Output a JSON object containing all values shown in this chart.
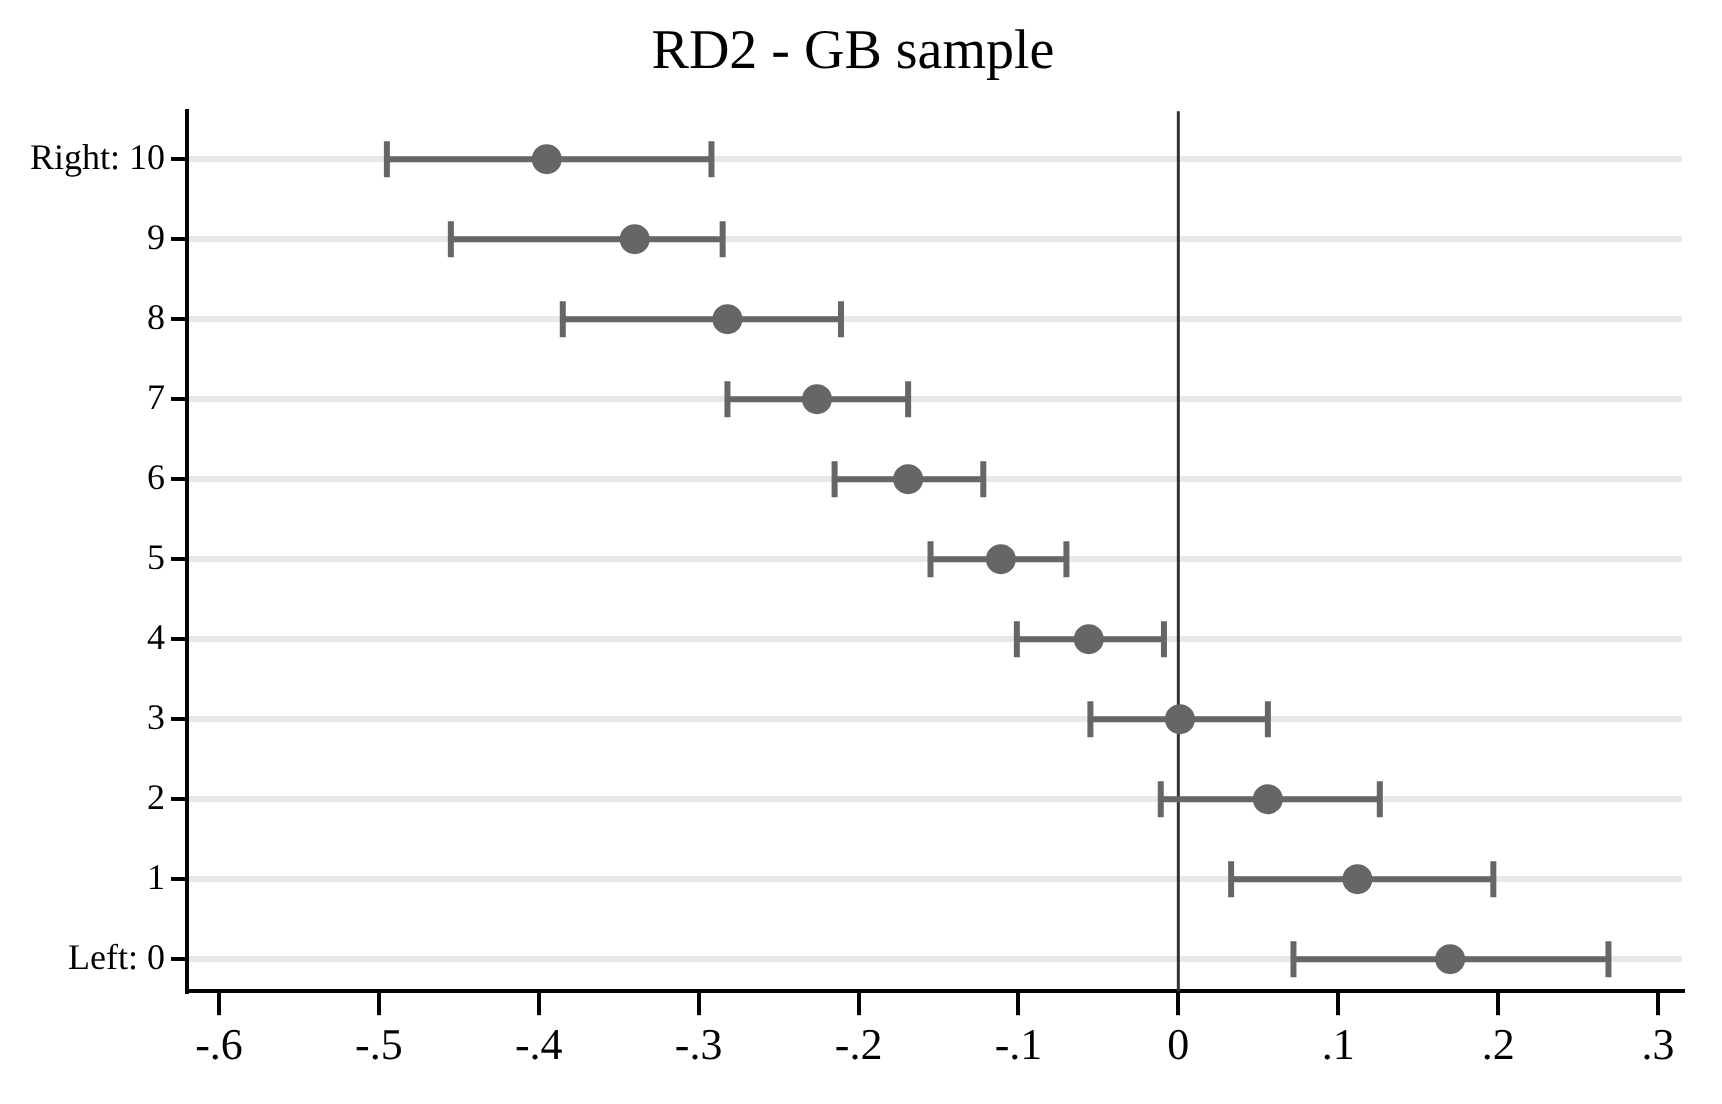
{
  "chart_data": {
    "type": "scatter",
    "orientation": "horizontal",
    "title": "RD2 - GB sample",
    "categories": [
      "Right: 10",
      "9",
      "8",
      "7",
      "6",
      "5",
      "4",
      "3",
      "2",
      "1",
      "Left: 0"
    ],
    "values": [
      -0.395,
      -0.34,
      -0.282,
      -0.226,
      -0.169,
      -0.111,
      -0.056,
      0.001,
      0.056,
      0.112,
      0.17
    ],
    "errors": [
      [
        -0.495,
        -0.292
      ],
      [
        -0.455,
        -0.285
      ],
      [
        -0.385,
        -0.211
      ],
      [
        -0.282,
        -0.169
      ],
      [
        -0.215,
        -0.122
      ],
      [
        -0.155,
        -0.07
      ],
      [
        -0.101,
        -0.009
      ],
      [
        -0.055,
        0.056
      ],
      [
        -0.011,
        0.126
      ],
      [
        0.033,
        0.197
      ],
      [
        0.072,
        0.269
      ]
    ],
    "color": "#666666",
    "marker": "circle",
    "xlim": [
      -0.62,
      0.315
    ],
    "xticks": [
      {
        "value": -0.6,
        "label": "-.6"
      },
      {
        "value": -0.5,
        "label": "-.5"
      },
      {
        "value": -0.4,
        "label": "-.4"
      },
      {
        "value": -0.3,
        "label": "-.3"
      },
      {
        "value": -0.2,
        "label": "-.2"
      },
      {
        "value": -0.1,
        "label": "-.1"
      },
      0,
      {
        "value": 0.1,
        "label": ".1"
      },
      {
        "value": 0.2,
        "label": ".2"
      },
      {
        "value": 0.3,
        "label": ".3"
      }
    ],
    "ref_lines": [
      {
        "axis": "x",
        "value": 0,
        "color": "#333333"
      }
    ],
    "grid": "y",
    "legend": false
  }
}
